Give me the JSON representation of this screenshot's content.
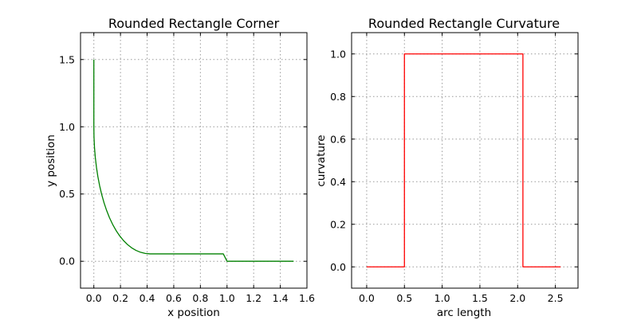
{
  "chart_data": [
    {
      "type": "line",
      "title": "Rounded Rectangle Corner",
      "xlabel": "x position",
      "ylabel": "y position",
      "xlim": [
        -0.1,
        1.6
      ],
      "ylim": [
        -0.2,
        1.7
      ],
      "xticks": [
        0.0,
        0.2,
        0.4,
        0.6,
        0.8,
        1.0,
        1.2,
        1.4,
        1.6
      ],
      "xtick_labels": [
        "0.0",
        "0.2",
        "0.4",
        "0.6",
        "0.8",
        "1.0",
        "1.2",
        "1.4",
        "1.6"
      ],
      "yticks": [
        0.0,
        0.5,
        1.0,
        1.5
      ],
      "ytick_labels": [
        "0.0",
        "0.5",
        "1.0",
        "1.5"
      ],
      "grid": true,
      "series": [
        {
          "color": "#008000",
          "x": [
            0.0,
            0.0,
            0.0012,
            0.0049,
            0.011,
            0.0196,
            0.0304,
            0.0436,
            0.0589,
            0.0764,
            0.0959,
            0.1174,
            0.1408,
            0.1661,
            0.1931,
            0.2217,
            0.2519,
            0.2835,
            0.3165,
            0.3507,
            0.386,
            0.4224,
            0.4597,
            0.4977,
            0.5364,
            0.5757,
            0.6154,
            0.6555,
            0.6957,
            0.736,
            0.7762,
            0.8162,
            0.856,
            0.8953,
            0.934,
            0.972,
            1.0,
            1.5
          ],
          "y": [
            1.5,
            1.0,
            0.9227,
            0.8465,
            0.7718,
            0.6991,
            0.6287,
            0.561,
            0.4963,
            0.4351,
            0.3776,
            0.324,
            0.2748,
            0.2301,
            0.1901,
            0.1551,
            0.1251,
            0.1003,
            0.0809,
            0.0668,
            0.0581,
            0.0548,
            0.0548,
            0.0548,
            0.0548,
            0.0548,
            0.0548,
            0.0548,
            0.0548,
            0.0548,
            0.0548,
            0.0548,
            0.0548,
            0.0548,
            0.0548,
            0.0548,
            0.0,
            0.0
          ]
        }
      ]
    },
    {
      "type": "line",
      "title": "Rounded Rectangle Curvature",
      "xlabel": "arc length",
      "ylabel": "curvature",
      "xlim": [
        -0.2,
        2.8
      ],
      "ylim": [
        -0.1,
        1.1
      ],
      "xticks": [
        0.0,
        0.5,
        1.0,
        1.5,
        2.0,
        2.5
      ],
      "xtick_labels": [
        "0.0",
        "0.5",
        "1.0",
        "1.5",
        "2.0",
        "2.5"
      ],
      "yticks": [
        0.0,
        0.2,
        0.4,
        0.6,
        0.8,
        1.0
      ],
      "ytick_labels": [
        "0.0",
        "0.2",
        "0.4",
        "0.6",
        "0.8",
        "1.0"
      ],
      "grid": true,
      "series": [
        {
          "color": "#ff0000",
          "x": [
            0.0,
            0.5,
            0.5,
            2.07,
            2.07,
            2.57
          ],
          "y": [
            0.0,
            0.0,
            1.0,
            1.0,
            0.0,
            0.0
          ]
        }
      ]
    }
  ]
}
